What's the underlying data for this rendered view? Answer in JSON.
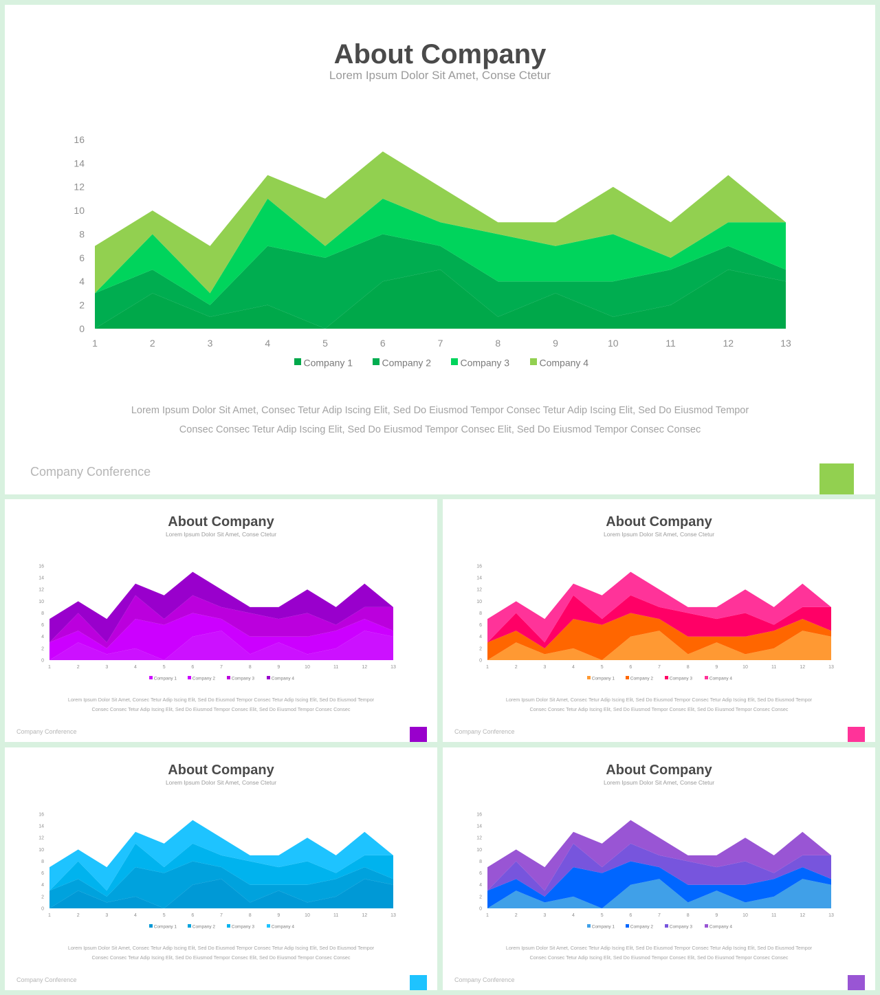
{
  "slides": [
    {
      "title": "About Company",
      "subtitle": "Lorem Ipsum Dolor Sit Amet, Conse Ctetur",
      "body_line1": "Lorem Ipsum Dolor Sit Amet, Consec Tetur Adip Iscing Elit, Sed Do Eiusmod Tempor Consec Tetur Adip Iscing Elit, Sed Do Eiusmod Tempor",
      "body_line2": "Consec Consec Tetur Adip Iscing Elit, Sed Do Eiusmod Tempor Consec Elit, Sed Do Eiusmod Tempor Consec Consec",
      "footer": "Company Conference",
      "accent_color": "#92d050",
      "series_colors": [
        "#00a84a",
        "#00ad50",
        "#00d45c",
        "#92d050"
      ]
    },
    {
      "title": "About Company",
      "subtitle": "Lorem Ipsum Dolor Sit Amet, Conse Ctetur",
      "body_line1": "Lorem Ipsum Dolor Sit Amet, Consec Tetur Adip Iscing Elit, Sed Do Eiusmod Tempor Consec Tetur Adip Iscing Elit, Sed Do Eiusmod Tempor",
      "body_line2": "Consec Consec Tetur Adip Iscing Elit, Sed Do Eiusmod Tempor Consec Elit, Sed Do Eiusmod Tempor Consec Consec",
      "footer": "Company Conference",
      "accent_color": "#9900cc",
      "series_colors": [
        "#cc11ff",
        "#cc00ff",
        "#bb00dd",
        "#9900cc"
      ]
    },
    {
      "title": "About Company",
      "subtitle": "Lorem Ipsum Dolor Sit Amet, Conse Ctetur",
      "body_line1": "Lorem Ipsum Dolor Sit Amet, Consec Tetur Adip Iscing Elit, Sed Do Eiusmod Tempor Consec Tetur Adip Iscing Elit, Sed Do Eiusmod Tempor",
      "body_line2": "Consec Consec Tetur Adip Iscing Elit, Sed Do Eiusmod Tempor Consec Elit, Sed Do Eiusmod Tempor Consec Consec",
      "footer": "Company Conference",
      "accent_color": "#ff3399",
      "series_colors": [
        "#ff9933",
        "#ff6600",
        "#ff0066",
        "#ff3399"
      ]
    },
    {
      "title": "About Company",
      "subtitle": "Lorem Ipsum Dolor Sit Amet, Conse Ctetur",
      "body_line1": "Lorem Ipsum Dolor Sit Amet, Consec Tetur Adip Iscing Elit, Sed Do Eiusmod Tempor Consec Tetur Adip Iscing Elit, Sed Do Eiusmod Tempor",
      "body_line2": "Consec Consec Tetur Adip Iscing Elit, Sed Do Eiusmod Tempor Consec Elit, Sed Do Eiusmod Tempor Consec Consec",
      "footer": "Company Conference",
      "accent_color": "#1ec3ff",
      "series_colors": [
        "#0099d6",
        "#00a2dd",
        "#00b3ee",
        "#1ec3ff"
      ]
    },
    {
      "title": "About Company",
      "subtitle": "Lorem Ipsum Dolor Sit Amet, Conse Ctetur",
      "body_line1": "Lorem Ipsum Dolor Sit Amet, Consec Tetur Adip Iscing Elit, Sed Do Eiusmod Tempor Consec Tetur Adip Iscing Elit, Sed Do Eiusmod Tempor",
      "body_line2": "Consec Consec Tetur Adip Iscing Elit, Sed Do Eiusmod Tempor Consec Elit, Sed Do Eiusmod Tempor Consec Consec",
      "footer": "Company Conference",
      "accent_color": "#9955d4",
      "series_colors": [
        "#40a0e8",
        "#0066ff",
        "#7755dd",
        "#9955d4"
      ]
    }
  ],
  "chart_data": {
    "type": "area",
    "stacked": true,
    "x": [
      1,
      2,
      3,
      4,
      5,
      6,
      7,
      8,
      9,
      10,
      11,
      12,
      13
    ],
    "yticks": [
      0,
      2,
      4,
      6,
      8,
      10,
      12,
      14,
      16
    ],
    "ylim": [
      0,
      16
    ],
    "grid": false,
    "legend_position": "bottom",
    "series": [
      {
        "name": "Company 1",
        "values": [
          0,
          3,
          1,
          2,
          0,
          4,
          5,
          1,
          3,
          1,
          2,
          5,
          4
        ]
      },
      {
        "name": "Company 2",
        "values": [
          3,
          2,
          1,
          5,
          6,
          4,
          2,
          3,
          1,
          3,
          3,
          2,
          1
        ]
      },
      {
        "name": "Company 3",
        "values": [
          0,
          3,
          1,
          4,
          1,
          3,
          2,
          4,
          3,
          4,
          1,
          2,
          4
        ]
      },
      {
        "name": "Company 4",
        "values": [
          4,
          2,
          4,
          2,
          4,
          4,
          3,
          1,
          2,
          4,
          3,
          4,
          0
        ]
      }
    ]
  }
}
